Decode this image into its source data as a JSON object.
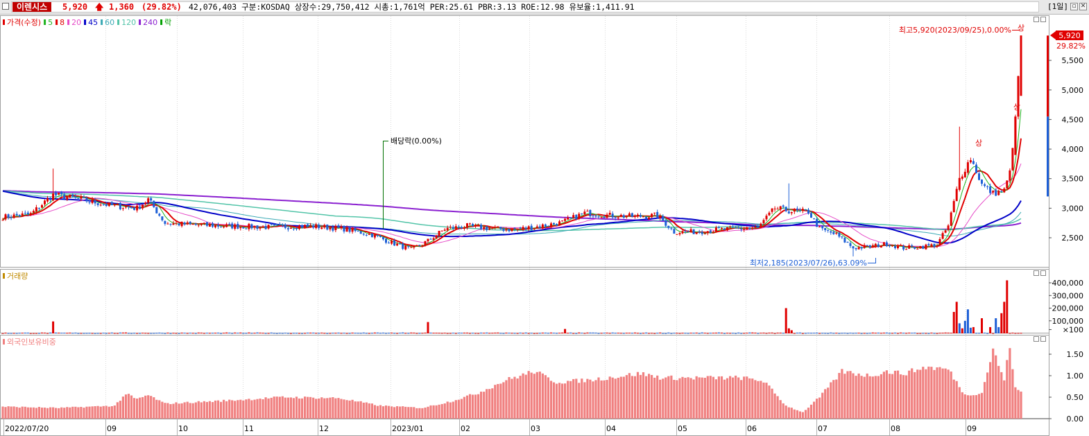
{
  "header": {
    "name": "이렌시스",
    "price": "5,920",
    "arrow": "🡅",
    "change": "1,360",
    "change_pct": "(29.82%)",
    "info": "42,076,403  구분:KOSDAQ 상장수:29,750,412 시총:1,761억 PER:25.61 PBR:3.13 ROE:12.98 유보율:1,411.91",
    "period": "[1일]"
  },
  "price_panel": {
    "legend": [
      "가격(수정)",
      "5",
      "8",
      "20",
      "45",
      "60",
      "120",
      "240",
      "락"
    ],
    "legend_colors": [
      "#e00000",
      "#1db31d",
      "#e00000",
      "#e64cc8",
      "#0000c8",
      "#3aa9b4",
      "#52c4a8",
      "#8a1fd0",
      "#00a000"
    ],
    "y_ticks": [
      "5,500",
      "5,000",
      "4,500",
      "4,000",
      "3,500",
      "3,000",
      "2,500"
    ],
    "last_price_label": "5,920",
    "last_pct_label": "29.82%",
    "high_annotation": "최고5,920(2023/09/25),0.00%",
    "low_annotation": "최저2,185(2023/07/26),63.09%",
    "dividend_annotation": "배당락(0.00%)",
    "limit_up_mark": "상"
  },
  "volume_panel": {
    "legend": "거래량",
    "legend_color": "#c08a00",
    "y_ticks": [
      "400,000",
      "300,000",
      "200,000",
      "100,000",
      "×100"
    ]
  },
  "foreign_panel": {
    "legend": "외국인보유비중",
    "legend_color": "#f08080",
    "y_ticks": [
      "1.50",
      "1.00",
      "0.50",
      "0.00"
    ]
  },
  "x_axis": {
    "labels": [
      "2022/07/20",
      "09",
      "10",
      "11",
      "12",
      "2023/01",
      "02",
      "03",
      "04",
      "05",
      "06",
      "07",
      "08",
      "09"
    ]
  },
  "colors": {
    "up": "#e00000",
    "down": "#1d5fd6",
    "ma5": "#1db31d",
    "ma8": "#e00000",
    "ma20": "#e64cc8",
    "ma45": "#0000c8",
    "ma120": "#52c4a8",
    "ma240": "#8a1fd0",
    "foreign_bar": "#f08080"
  },
  "chart_data": [
    {
      "type": "candlestick",
      "title": "가격(수정)",
      "x_range": [
        "2022/07/20",
        "2023/09/25"
      ],
      "ylim": [
        2185,
        5920
      ],
      "y_ticks": [
        2500,
        3000,
        3500,
        4000,
        4500,
        5000,
        5500
      ],
      "close_anchors": [
        [
          0,
          2850
        ],
        [
          10,
          2900
        ],
        [
          18,
          3230
        ],
        [
          28,
          3150
        ],
        [
          38,
          3050
        ],
        [
          48,
          3000
        ],
        [
          52,
          3150
        ],
        [
          58,
          2750
        ],
        [
          68,
          2720
        ],
        [
          80,
          2700
        ],
        [
          95,
          2680
        ],
        [
          110,
          2700
        ],
        [
          122,
          2650
        ],
        [
          132,
          2550
        ],
        [
          140,
          2400
        ],
        [
          146,
          2300
        ],
        [
          152,
          2450
        ],
        [
          158,
          2650
        ],
        [
          166,
          2700
        ],
        [
          174,
          2660
        ],
        [
          182,
          2640
        ],
        [
          190,
          2680
        ],
        [
          200,
          2760
        ],
        [
          208,
          2920
        ],
        [
          216,
          2880
        ],
        [
          226,
          2860
        ],
        [
          234,
          2880
        ],
        [
          240,
          2600
        ],
        [
          248,
          2600
        ],
        [
          256,
          2640
        ],
        [
          262,
          2650
        ],
        [
          270,
          2670
        ],
        [
          276,
          3000
        ],
        [
          282,
          2950
        ],
        [
          288,
          2940
        ],
        [
          292,
          2650
        ],
        [
          298,
          2550
        ],
        [
          304,
          2330
        ],
        [
          310,
          2350
        ],
        [
          316,
          2400
        ],
        [
          322,
          2330
        ],
        [
          328,
          2350
        ],
        [
          334,
          2380
        ],
        [
          338,
          2700
        ],
        [
          342,
          3500
        ],
        [
          346,
          3850
        ],
        [
          350,
          3400
        ],
        [
          354,
          3250
        ],
        [
          358,
          3300
        ],
        [
          360,
          3600
        ],
        [
          362,
          4550
        ],
        [
          364,
          5920
        ]
      ],
      "annotations": {
        "high": "최고5,920(2023/09/25),0.00%",
        "low": "최저2,185(2023/07/26),63.09%",
        "dividend_ex": "배당락(0.00%)"
      },
      "series": [
        {
          "name": "5"
        },
        {
          "name": "8"
        },
        {
          "name": "20"
        },
        {
          "name": "45"
        },
        {
          "name": "60"
        },
        {
          "name": "120"
        },
        {
          "name": "240"
        }
      ]
    },
    {
      "type": "bar",
      "title": "거래량",
      "ylim": [
        0,
        450000
      ],
      "y_ticks": [
        100000,
        200000,
        300000,
        400000
      ],
      "spikes": [
        [
          18,
          95000,
          "up"
        ],
        [
          152,
          90000,
          "up"
        ],
        [
          201,
          35000,
          "up"
        ],
        [
          280,
          200000,
          "up"
        ],
        [
          281,
          40000,
          "up"
        ],
        [
          282,
          25000,
          "up"
        ],
        [
          340,
          170000,
          "up"
        ],
        [
          341,
          250000,
          "up"
        ],
        [
          342,
          80000,
          "down"
        ],
        [
          343,
          40000,
          "up"
        ],
        [
          344,
          100000,
          "down"
        ],
        [
          345,
          190000,
          "down"
        ],
        [
          346,
          45000,
          "down"
        ],
        [
          347,
          50000,
          "up"
        ],
        [
          350,
          120000,
          "up"
        ],
        [
          353,
          50000,
          "up"
        ],
        [
          355,
          120000,
          "down"
        ],
        [
          356,
          50000,
          "down"
        ],
        [
          357,
          160000,
          "up"
        ],
        [
          358,
          250000,
          "up"
        ],
        [
          359,
          420000,
          "up"
        ]
      ]
    },
    {
      "type": "bar",
      "title": "외국인보유비중",
      "ylim": [
        0,
        1.8
      ],
      "y_ticks": [
        0,
        0.5,
        1.0,
        1.5
      ],
      "anchors": [
        [
          0,
          0.28
        ],
        [
          20,
          0.25
        ],
        [
          40,
          0.3
        ],
        [
          44,
          0.58
        ],
        [
          48,
          0.45
        ],
        [
          52,
          0.55
        ],
        [
          58,
          0.35
        ],
        [
          80,
          0.42
        ],
        [
          100,
          0.5
        ],
        [
          120,
          0.48
        ],
        [
          135,
          0.3
        ],
        [
          150,
          0.25
        ],
        [
          160,
          0.4
        ],
        [
          170,
          0.6
        ],
        [
          180,
          0.9
        ],
        [
          190,
          1.1
        ],
        [
          198,
          0.85
        ],
        [
          210,
          0.9
        ],
        [
          228,
          1.05
        ],
        [
          236,
          0.95
        ],
        [
          248,
          0.95
        ],
        [
          264,
          0.95
        ],
        [
          272,
          0.88
        ],
        [
          280,
          0.3
        ],
        [
          286,
          0.15
        ],
        [
          292,
          0.5
        ],
        [
          300,
          1.1
        ],
        [
          310,
          1.0
        ],
        [
          316,
          1.1
        ],
        [
          322,
          1.05
        ],
        [
          330,
          1.2
        ],
        [
          338,
          1.15
        ],
        [
          344,
          0.55
        ],
        [
          350,
          0.6
        ],
        [
          354,
          1.6
        ],
        [
          358,
          0.9
        ],
        [
          360,
          1.7
        ],
        [
          362,
          0.7
        ],
        [
          364,
          0.62
        ]
      ]
    }
  ]
}
